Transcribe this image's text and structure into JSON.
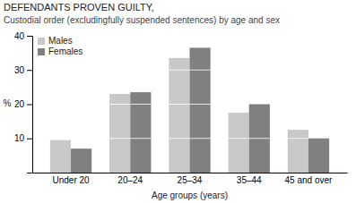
{
  "chart_data": {
    "type": "bar",
    "title": "DEFENDANTS PROVEN GUILTY,",
    "subtitle": "Custodial order (excludingfully suspended sentences) by age and sex",
    "x_label": "Age groups (years)",
    "y_label": "%",
    "categories": [
      "Under 20",
      "20–24",
      "25–34",
      "35–44",
      "45 and over"
    ],
    "series": [
      {
        "name": "Males",
        "color": "#c8c8c8",
        "values": [
          9.5,
          23.0,
          33.5,
          17.5,
          12.5
        ]
      },
      {
        "name": "Females",
        "color": "#808080",
        "values": [
          7.0,
          23.5,
          36.5,
          20.0,
          10.0
        ]
      }
    ],
    "ylim": [
      0,
      40
    ],
    "yticks": [
      10,
      20,
      30,
      40
    ],
    "legend": "upper left"
  }
}
